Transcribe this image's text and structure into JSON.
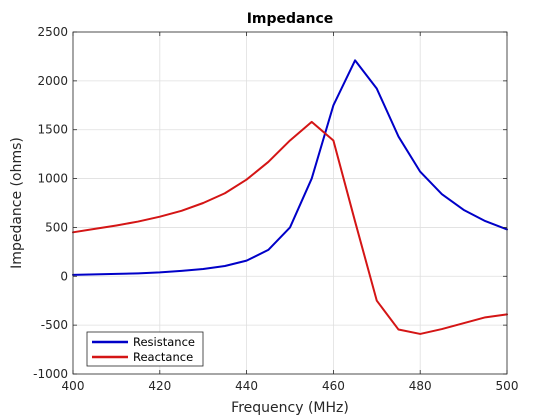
{
  "chart_data": {
    "type": "line",
    "title": "Impedance",
    "xlabel": "Frequency (MHz)",
    "ylabel": "Impedance (ohms)",
    "xlim": [
      400,
      500
    ],
    "ylim": [
      -1000,
      2500
    ],
    "xticks": [
      400,
      420,
      440,
      460,
      480,
      500
    ],
    "yticks": [
      -1000,
      -500,
      0,
      500,
      1000,
      1500,
      2000,
      2500
    ],
    "grid": true,
    "legend_position": "bottom-left",
    "x": [
      400,
      405,
      410,
      415,
      420,
      425,
      430,
      435,
      440,
      445,
      450,
      455,
      460,
      465,
      470,
      475,
      480,
      485,
      490,
      495,
      500
    ],
    "series": [
      {
        "name": "Resistance",
        "color": "#0000c8",
        "values": [
          15,
          20,
          25,
          30,
          40,
          55,
          75,
          105,
          160,
          270,
          500,
          1000,
          1750,
          2210,
          1920,
          1430,
          1070,
          840,
          680,
          565,
          480
        ]
      },
      {
        "name": "Reactance",
        "color": "#d41515",
        "values": [
          450,
          485,
          520,
          560,
          610,
          670,
          750,
          850,
          990,
          1170,
          1390,
          1580,
          1390,
          560,
          -250,
          -545,
          -590,
          -540,
          -480,
          -420,
          -390
        ]
      }
    ]
  }
}
